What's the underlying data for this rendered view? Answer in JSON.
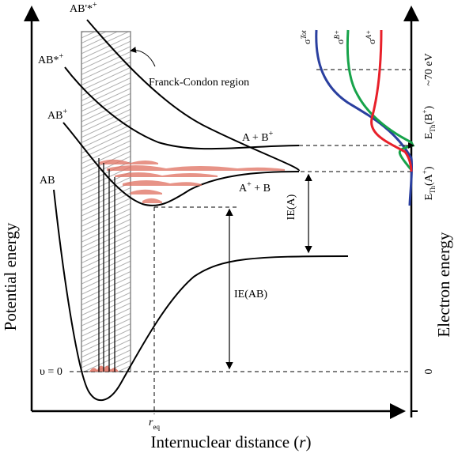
{
  "axes": {
    "x_title": "Internuclear distance (",
    "x_var": "r",
    "x_close": ")",
    "left_y_title": "Potential energy",
    "right_y_title": "Electron energy",
    "r_eq_main": "r",
    "r_eq_sub": "eq"
  },
  "curves": {
    "ab": "AB",
    "ab_plus": "AB",
    "ab_plus_sup": "+",
    "ab_star_plus": "AB*",
    "ab_star_plus_sup": "+",
    "ab_dstar_plus": "AB'*",
    "ab_dstar_plus_sup": "+"
  },
  "asymptotes": {
    "a_bplus_1": "A  + B",
    "a_bplus_sup": "+",
    "aplus_b_1": "A",
    "aplus_sup": "+",
    "aplus_b_2": " + B"
  },
  "labels": {
    "franck_condon": "Franck-Condon region",
    "ie_a": "IE(A)",
    "ie_ab": "IE(AB)",
    "v0": "υ = 0",
    "zero": "0",
    "seventy_ev": "~70 eV",
    "eth_a_main": "E",
    "eth_a_sub": "Th",
    "eth_a_arg": "(A",
    "eth_a_sup": "+",
    "eth_a_close": ")",
    "eth_b_main": "E",
    "eth_b_sub": "Th",
    "eth_b_arg": "(B",
    "eth_b_sup": "+",
    "eth_b_close": ")"
  },
  "cross_sections": {
    "tot": "σ",
    "tot_sup": "Tot",
    "b": "σ",
    "b_sup": "B+",
    "a": "σ",
    "a_sup": "A+"
  },
  "colors": {
    "tot": "#2a3f9f",
    "b_plus": "#17a34a",
    "a_plus": "#e8202a",
    "wavepacket": "#e07060",
    "hatch": "#9a9a9a"
  }
}
